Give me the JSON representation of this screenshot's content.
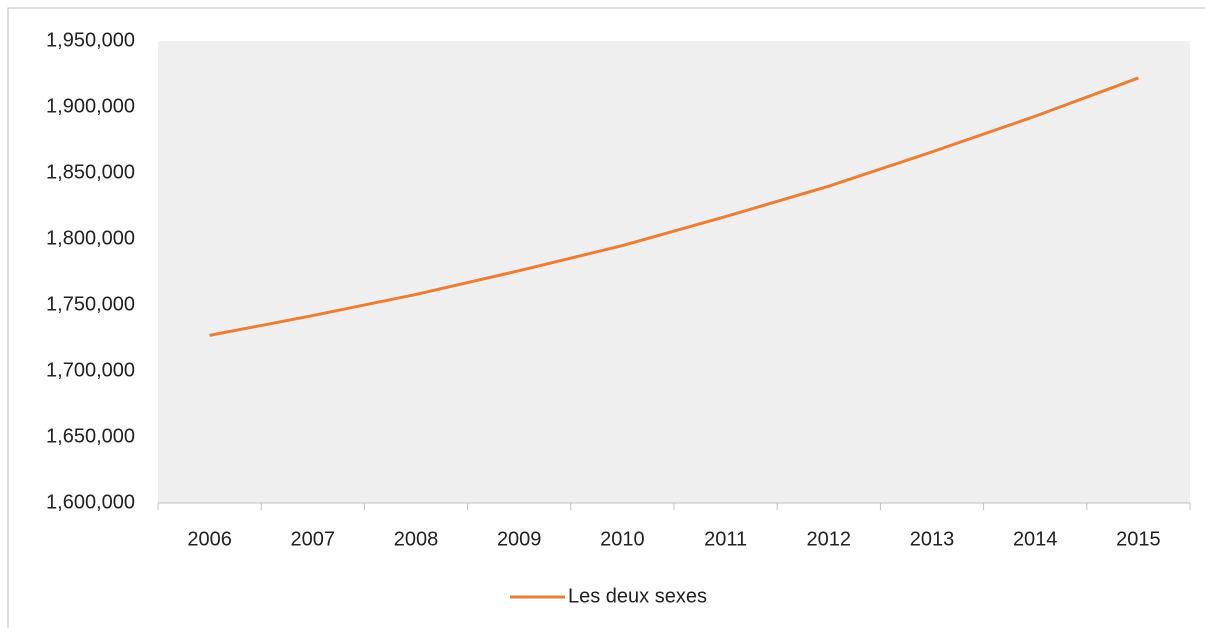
{
  "chart_data": {
    "type": "line",
    "categories": [
      "2006",
      "2007",
      "2008",
      "2009",
      "2010",
      "2011",
      "2012",
      "2013",
      "2014",
      "2015"
    ],
    "series": [
      {
        "name": "Les deux sexes",
        "color": "#ed7d31",
        "values": [
          1727000,
          1742000,
          1758000,
          1776000,
          1795000,
          1817000,
          1840000,
          1866000,
          1893000,
          1922000
        ]
      }
    ],
    "ylim": [
      1600000,
      1950000
    ],
    "yticks": [
      {
        "value": 1600000,
        "label": "1,600,000"
      },
      {
        "value": 1650000,
        "label": "1,650,000"
      },
      {
        "value": 1700000,
        "label": "1,700,000"
      },
      {
        "value": 1750000,
        "label": "1,750,000"
      },
      {
        "value": 1800000,
        "label": "1,800,000"
      },
      {
        "value": 1850000,
        "label": "1,850,000"
      },
      {
        "value": 1900000,
        "label": "1,900,000"
      },
      {
        "value": 1950000,
        "label": "1,950,000"
      }
    ],
    "grid": false,
    "legend": "bottom",
    "plot_background": "#efefef"
  }
}
